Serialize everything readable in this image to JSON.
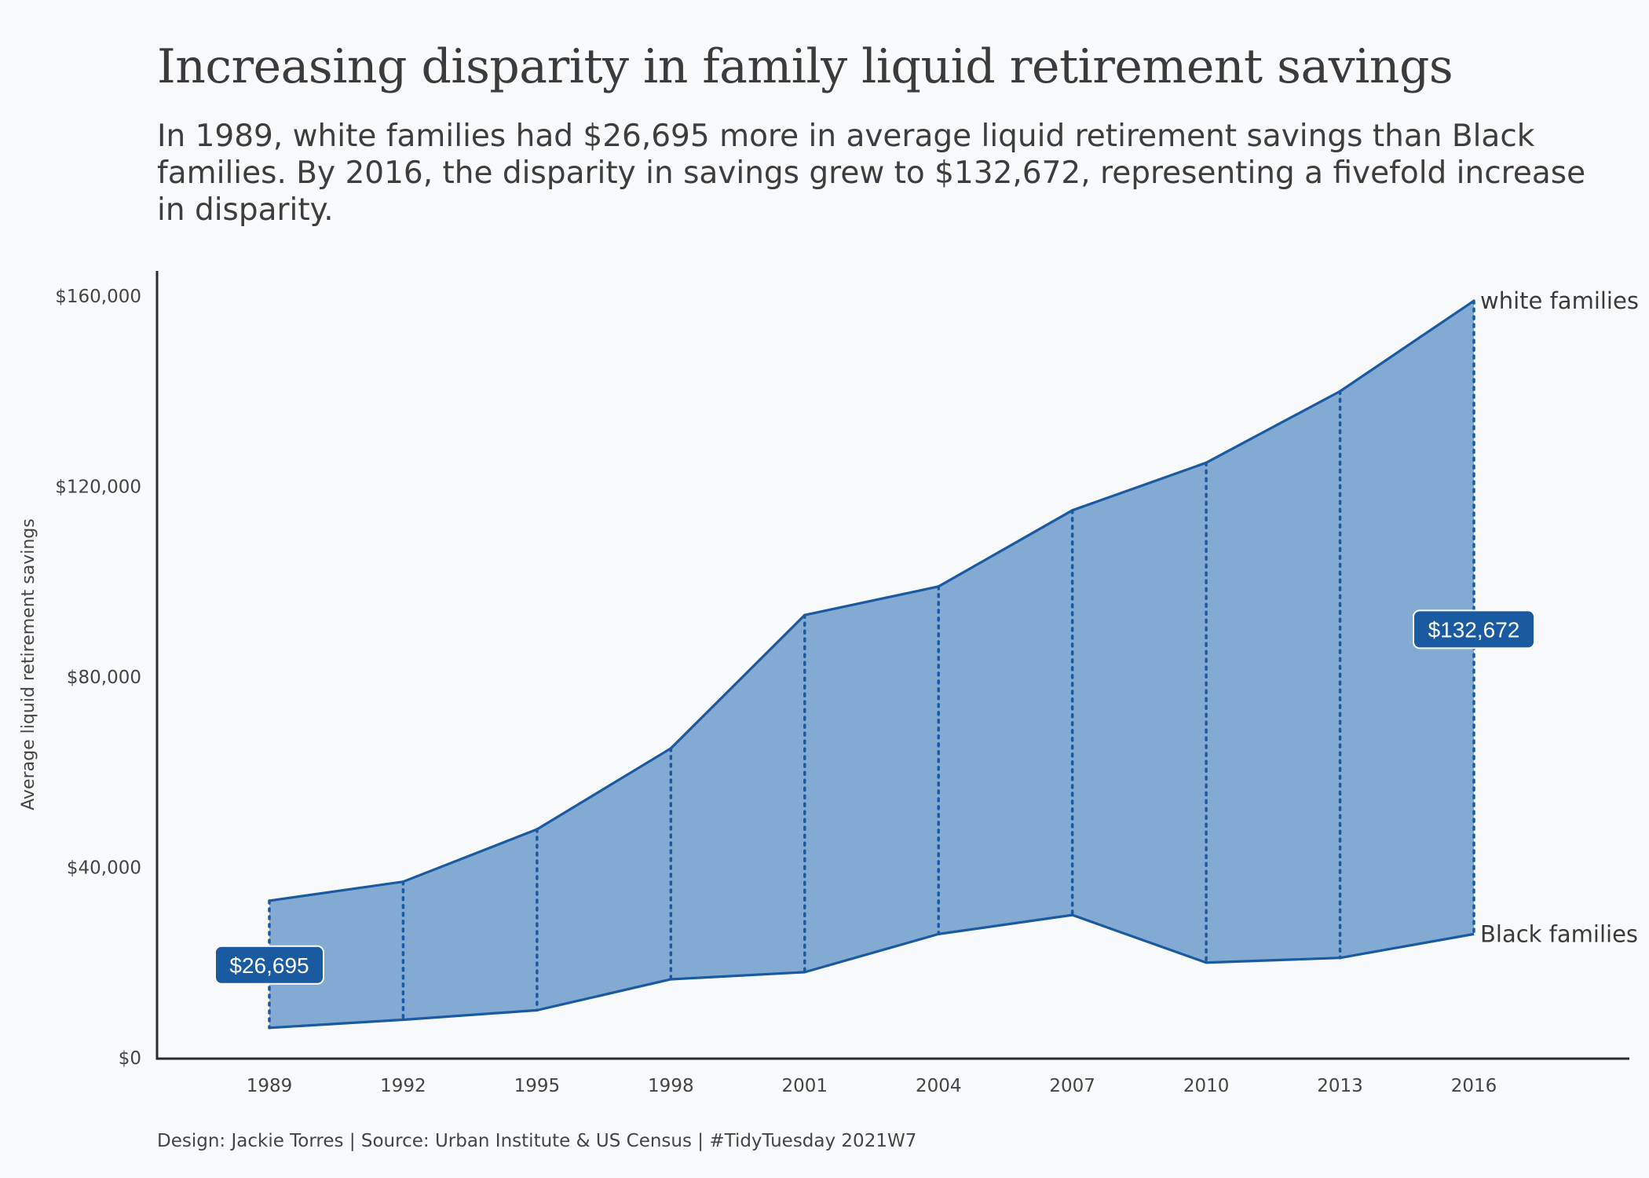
{
  "title": "Increasing disparity in family liquid retirement savings",
  "subtitle": "In 1989, white families had $26,695 more in average liquid retirement savings than Black families. By 2016, the disparity in savings grew to $132,672, representing a fivefold increase in disparity.",
  "caption": "Design: Jackie Torres | Source: Urban Institute & US Census | #TidyTuesday 2021W7",
  "colors": {
    "area_fill": "#82aad2",
    "line": "#1a5aa0",
    "label_box": "#1a5aa0",
    "background": "#f8f9fa"
  },
  "chart_data": {
    "type": "area",
    "x": [
      1989,
      1992,
      1995,
      1998,
      2001,
      2004,
      2007,
      2010,
      2013,
      2016
    ],
    "series": [
      {
        "name": "white families",
        "values": [
          33000,
          37000,
          48000,
          65000,
          93000,
          99000,
          115000,
          125000,
          140000,
          159000
        ]
      },
      {
        "name": "Black families",
        "values": [
          6300,
          8000,
          10000,
          16500,
          18000,
          26000,
          30000,
          20000,
          21000,
          26000
        ]
      }
    ],
    "ylabel": "Average liquid retirement savings",
    "xlabel": "",
    "ylim": [
      0,
      160000
    ],
    "y_ticks": [
      0,
      40000,
      80000,
      120000,
      160000
    ],
    "y_tick_labels": [
      "$0",
      "$40,000",
      "$80,000",
      "$120,000",
      "$160,000"
    ],
    "x_tick_labels": [
      "1989",
      "1992",
      "1995",
      "1998",
      "2001",
      "2004",
      "2007",
      "2010",
      "2013",
      "2016"
    ],
    "annotations": [
      {
        "x": 1989,
        "y": 19500,
        "text": "$26,695"
      },
      {
        "x": 2016,
        "y": 90000,
        "text": "$132,672"
      }
    ],
    "grid": false
  }
}
